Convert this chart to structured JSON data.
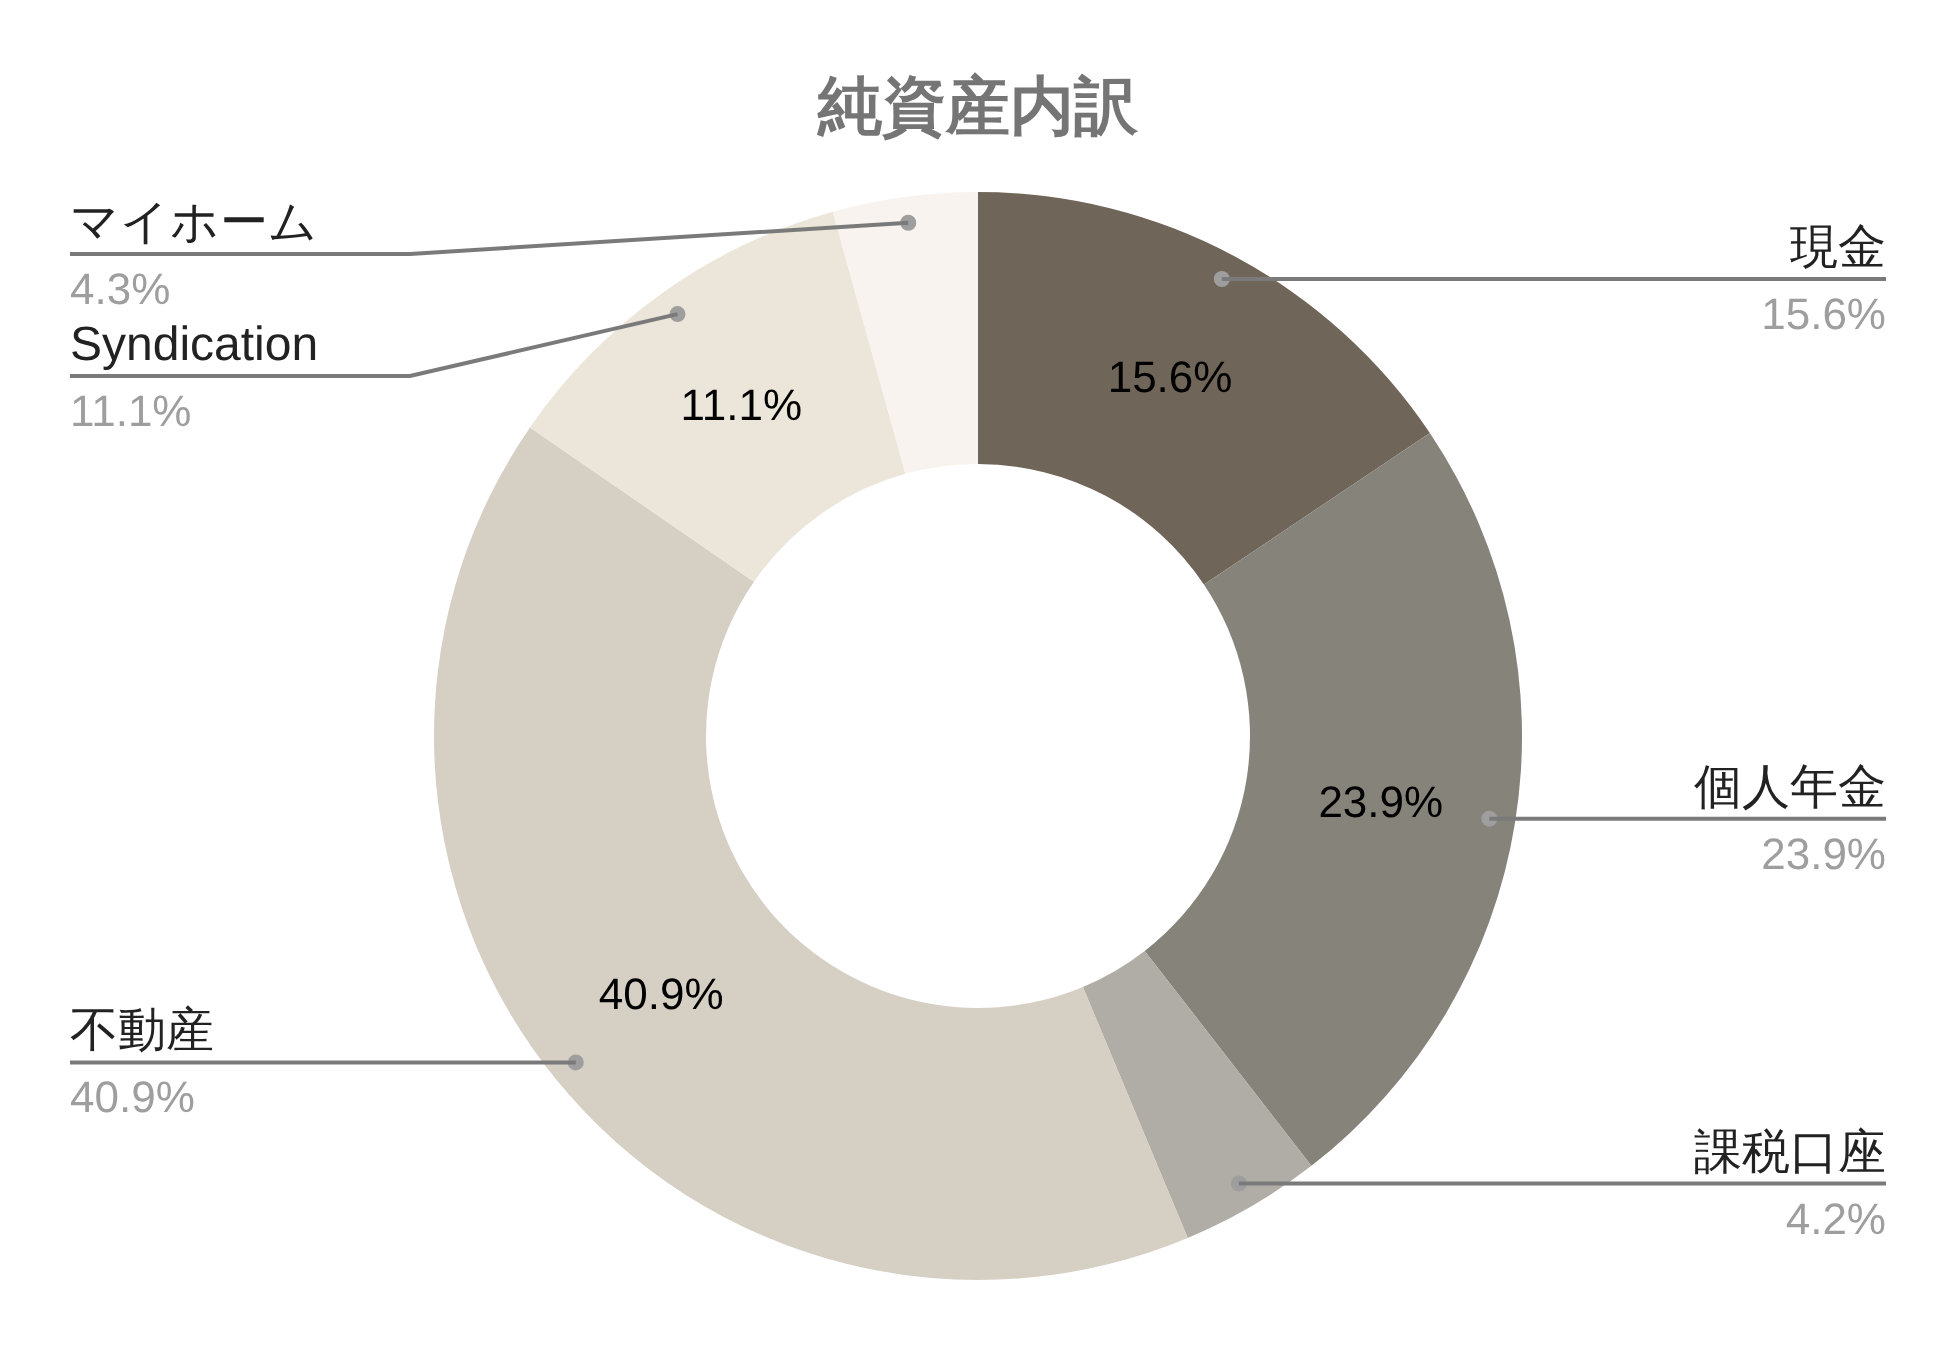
{
  "chart_data": {
    "type": "donut",
    "title": "純資産内訳",
    "categories": [
      "現金",
      "個人年金",
      "課税口座",
      "不動産",
      "Syndication",
      "マイホーム"
    ],
    "values": [
      15.6,
      23.9,
      4.2,
      40.9,
      11.1,
      4.3
    ],
    "colors": [
      "#6f6558",
      "#86837b",
      "#b0ada6",
      "#d5cfc4",
      "#ece5da",
      "#f8f3ee"
    ],
    "value_labels": [
      "15.6%",
      "23.9%",
      "4.2%",
      "40.9%",
      "11.1%",
      "4.3%"
    ],
    "annotations": [
      {
        "text": "15.6%",
        "x": "現金"
      },
      {
        "text": "23.9%",
        "x": "個人年金"
      },
      {
        "text": "40.9%",
        "x": "不動産"
      },
      {
        "text": "11.1%",
        "x": "Syndication"
      }
    ]
  }
}
